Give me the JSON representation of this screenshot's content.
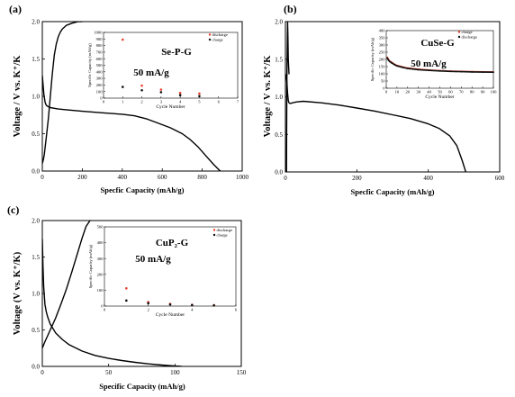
{
  "chart_data": [
    {
      "type": "line",
      "panel_label": "(a)",
      "xlabel": "Specfic Capacity (mAh/g)",
      "ylabel": "Voltage / V vs. K⁺/K",
      "xlim": [
        0,
        1000
      ],
      "ylim": [
        0,
        2.0
      ],
      "xticks": [
        0,
        200,
        400,
        600,
        800,
        1000
      ],
      "yticks": [
        0.0,
        0.5,
        1.0,
        1.5,
        2.0
      ],
      "series": [
        {
          "kind": "discharge",
          "x": [
            0,
            4,
            8,
            14,
            20,
            30,
            40,
            60,
            80,
            120,
            200,
            300,
            400,
            460,
            520,
            580,
            640,
            700,
            740,
            780,
            820,
            860,
            890
          ],
          "y": [
            1.28,
            1.15,
            1.02,
            0.92,
            0.88,
            0.86,
            0.85,
            0.84,
            0.83,
            0.82,
            0.8,
            0.78,
            0.76,
            0.74,
            0.7,
            0.64,
            0.58,
            0.5,
            0.42,
            0.32,
            0.2,
            0.08,
            0.0
          ]
        },
        {
          "kind": "charge",
          "x": [
            0,
            5,
            10,
            20,
            30,
            40,
            50,
            60,
            70,
            80,
            90,
            100,
            120,
            150,
            180,
            200
          ],
          "y": [
            0.1,
            0.15,
            0.22,
            0.45,
            0.7,
            1.0,
            1.3,
            1.55,
            1.7,
            1.8,
            1.86,
            1.9,
            1.95,
            1.98,
            2.0,
            2.0
          ]
        }
      ],
      "inset": {
        "annotation": "Se-P-G",
        "rate": "50 mA/g",
        "xlabel": "Cycle  Number",
        "ylabel": "Specific Capacity (mAh/g)",
        "xlim": [
          0,
          7
        ],
        "ylim": [
          0,
          1000
        ],
        "xticks": [
          0,
          1,
          2,
          3,
          4,
          5,
          6,
          7
        ],
        "yticks": [
          0,
          100,
          200,
          300,
          400,
          500,
          600,
          700,
          800,
          900,
          1000
        ],
        "legend": [
          "discharge",
          "charge"
        ],
        "series": [
          {
            "name": "discharge",
            "color": "#e8402a",
            "x": [
              1,
              2,
              3,
              4,
              5
            ],
            "y": [
              890,
              190,
              130,
              80,
              70
            ]
          },
          {
            "name": "charge",
            "color": "#111111",
            "x": [
              1,
              2,
              3,
              4,
              5
            ],
            "y": [
              170,
              120,
              90,
              45,
              30
            ]
          }
        ]
      }
    },
    {
      "type": "line",
      "panel_label": "(b)",
      "xlabel": "Specfic Capacity (mAh/g)",
      "ylabel": "Voltage / V vs. K⁺/K",
      "xlim": [
        0,
        600
      ],
      "ylim": [
        0.0,
        2.0
      ],
      "xticks": [
        0,
        200,
        400,
        600
      ],
      "yticks": [
        0.0,
        0.5,
        1.0,
        1.5,
        2.0
      ],
      "series": [
        {
          "kind": "discharge",
          "x": [
            0,
            2,
            4,
            6,
            8,
            10,
            14,
            20,
            30,
            50,
            100,
            150,
            200,
            250,
            300,
            350,
            400,
            430,
            460,
            480,
            495,
            505
          ],
          "y": [
            1.3,
            1.28,
            1.2,
            1.05,
            0.95,
            0.92,
            0.91,
            0.92,
            0.93,
            0.94,
            0.92,
            0.89,
            0.85,
            0.81,
            0.76,
            0.71,
            0.64,
            0.58,
            0.48,
            0.35,
            0.15,
            0.0
          ]
        },
        {
          "kind": "spike",
          "x": [
            3,
            4,
            5,
            6,
            7,
            8,
            9,
            10
          ],
          "y": [
            0.0,
            1.2,
            1.6,
            2.0,
            1.8,
            1.5,
            1.4,
            1.3
          ]
        }
      ],
      "inset": {
        "annotation": "CuSe-G",
        "rate": "50 mA/g",
        "xlabel": "Cycle Number",
        "ylabel": "Specific Capacity (mAh/g)",
        "xlim": [
          0,
          100
        ],
        "ylim": [
          0,
          400
        ],
        "xticks": [
          0,
          10,
          20,
          30,
          40,
          50,
          60,
          70,
          80,
          90,
          100
        ],
        "yticks": [
          0,
          50,
          100,
          150,
          200,
          250,
          300,
          350,
          400
        ],
        "legend": [
          "charge",
          "discharge"
        ],
        "series": [
          {
            "name": "charge",
            "color": "#e8402a",
            "x": [
              1,
              2,
              3,
              5,
              8,
              10,
              15,
              20,
              30,
              40,
              50,
              60,
              70,
              80,
              90,
              100
            ],
            "y": [
              215,
              200,
              190,
              180,
              165,
              158,
              148,
              140,
              132,
              126,
              122,
              119,
              117,
              115,
              114,
              113
            ]
          },
          {
            "name": "discharge",
            "color": "#111111",
            "x": [
              1,
              2,
              3,
              5,
              8,
              10,
              15,
              20,
              30,
              40,
              50,
              60,
              70,
              80,
              90,
              100
            ],
            "y": [
              210,
              196,
              186,
              176,
              162,
              155,
              145,
              137,
              129,
              124,
              120,
              117,
              115,
              113,
              112,
              111
            ]
          }
        ]
      }
    },
    {
      "type": "line",
      "panel_label": "(c)",
      "xlabel": "Specific Capacity (mAh/g)",
      "ylabel": "Voltage (V vs. K⁺/K)",
      "xlim": [
        0,
        150
      ],
      "ylim": [
        0.0,
        2.0
      ],
      "xticks": [
        0,
        50,
        100,
        150
      ],
      "yticks": [
        0.0,
        0.5,
        1.0,
        1.5,
        2.0
      ],
      "series": [
        {
          "kind": "discharge",
          "x": [
            0,
            0.5,
            1,
            2,
            3,
            4,
            6,
            8,
            10,
            15,
            20,
            30,
            40,
            50,
            60,
            70,
            80,
            90,
            100,
            105
          ],
          "y": [
            1.75,
            1.4,
            1.1,
            0.85,
            0.75,
            0.68,
            0.58,
            0.52,
            0.46,
            0.37,
            0.3,
            0.21,
            0.15,
            0.11,
            0.08,
            0.055,
            0.035,
            0.018,
            0.005,
            0.0
          ]
        },
        {
          "kind": "charge",
          "x": [
            0,
            2,
            4,
            6,
            8,
            10,
            14,
            18,
            22,
            26,
            30,
            33,
            36
          ],
          "y": [
            0.25,
            0.34,
            0.42,
            0.5,
            0.58,
            0.66,
            0.85,
            1.05,
            1.28,
            1.52,
            1.76,
            1.92,
            2.0
          ]
        }
      ],
      "inset": {
        "annotation": "CuP₂-G",
        "rate": "50 mA/g",
        "xlabel": "Cycle Number",
        "ylabel": "Specific Capacity (mAh/g)",
        "xlim": [
          0,
          6
        ],
        "ylim": [
          0,
          500
        ],
        "xticks": [
          0,
          2,
          4,
          6
        ],
        "yticks": [
          0,
          100,
          200,
          300,
          400,
          500
        ],
        "legend": [
          "discharge",
          "charge"
        ],
        "series": [
          {
            "name": "discharge",
            "color": "#e8402a",
            "x": [
              1,
              2,
              3,
              4,
              5
            ],
            "y": [
              112,
              25,
              14,
              8,
              6
            ]
          },
          {
            "name": "charge",
            "color": "#111111",
            "x": [
              1,
              2,
              3,
              4,
              5
            ],
            "y": [
              35,
              18,
              10,
              6,
              4
            ]
          }
        ]
      }
    }
  ]
}
